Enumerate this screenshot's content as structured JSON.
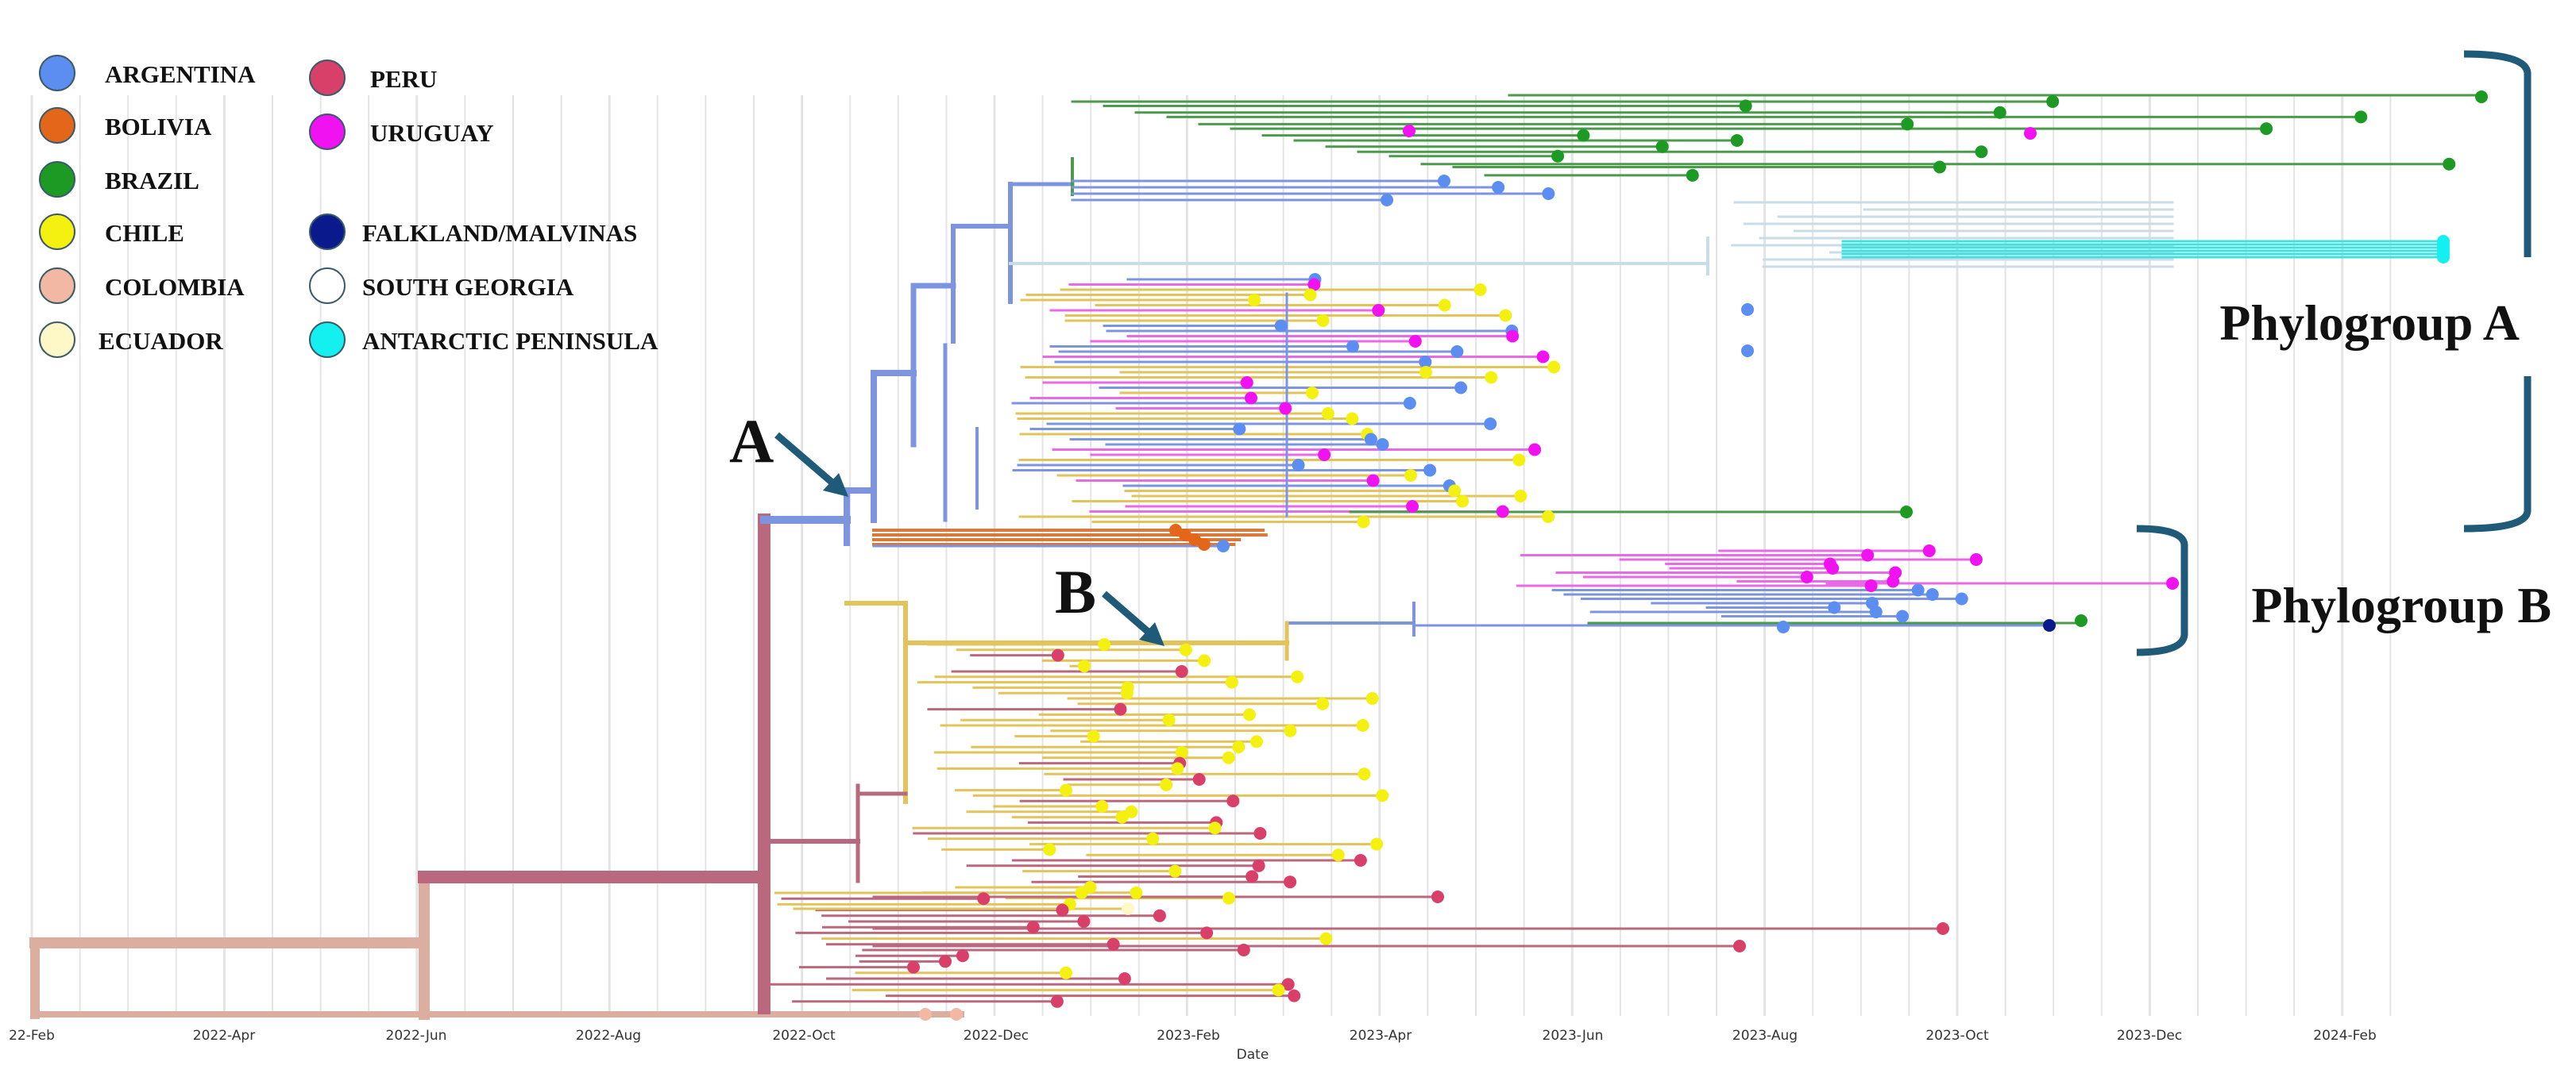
{
  "figure": {
    "x_axis": {
      "title": "Date",
      "ticks": [
        "22-Feb",
        "2022-Apr",
        "2022-Jun",
        "2022-Aug",
        "2022-Oct",
        "2022-Dec",
        "2023-Feb",
        "2023-Apr",
        "2023-Jun",
        "2023-Aug",
        "2023-Oct",
        "2023-Dec",
        "2024-Feb"
      ]
    },
    "legend": [
      {
        "label": "ARGENTINA",
        "color": "#5b8ef0"
      },
      {
        "label": "BOLIVIA",
        "color": "#e3661a"
      },
      {
        "label": "BRAZIL",
        "color": "#1c9a24"
      },
      {
        "label": "CHILE",
        "color": "#f4f00f"
      },
      {
        "label": "COLOMBIA",
        "color": "#f2b8a3"
      },
      {
        "label": "ECUADOR",
        "color": "#fdf8c6"
      },
      {
        "label": "PERU",
        "color": "#d8406a"
      },
      {
        "label": "URUGUAY",
        "color": "#f012f0"
      },
      {
        "label": "FALKLAND/MALVINAS",
        "color": "#0a1a8c"
      },
      {
        "label": "SOUTH GEORGIA",
        "color": "#ffffff"
      },
      {
        "label": "ANTARCTIC PENINSULA",
        "color": "#14f0f0"
      }
    ],
    "annotations": {
      "node_a": "A",
      "node_b": "B",
      "phylogroup_a": "Phylogroup A",
      "phylogroup_b": "Phylogroup B"
    },
    "colors": {
      "root_branch": "#dbaea0",
      "peru_branch": "#b9687e",
      "clade_a_branch": "#7d95df",
      "chile_branch": "#e2c45a",
      "brazil_branch": "#4c9a4c",
      "south_georgia_branch": "#c8dde6",
      "antarctic_branch": "#3fe0e0",
      "uruguay_branch": "#e86ae6",
      "bolivia_branch": "#d77a3a",
      "arrow": "#1f5a78",
      "bracket": "#1f5a78",
      "grid": "#e4e4e4"
    }
  }
}
